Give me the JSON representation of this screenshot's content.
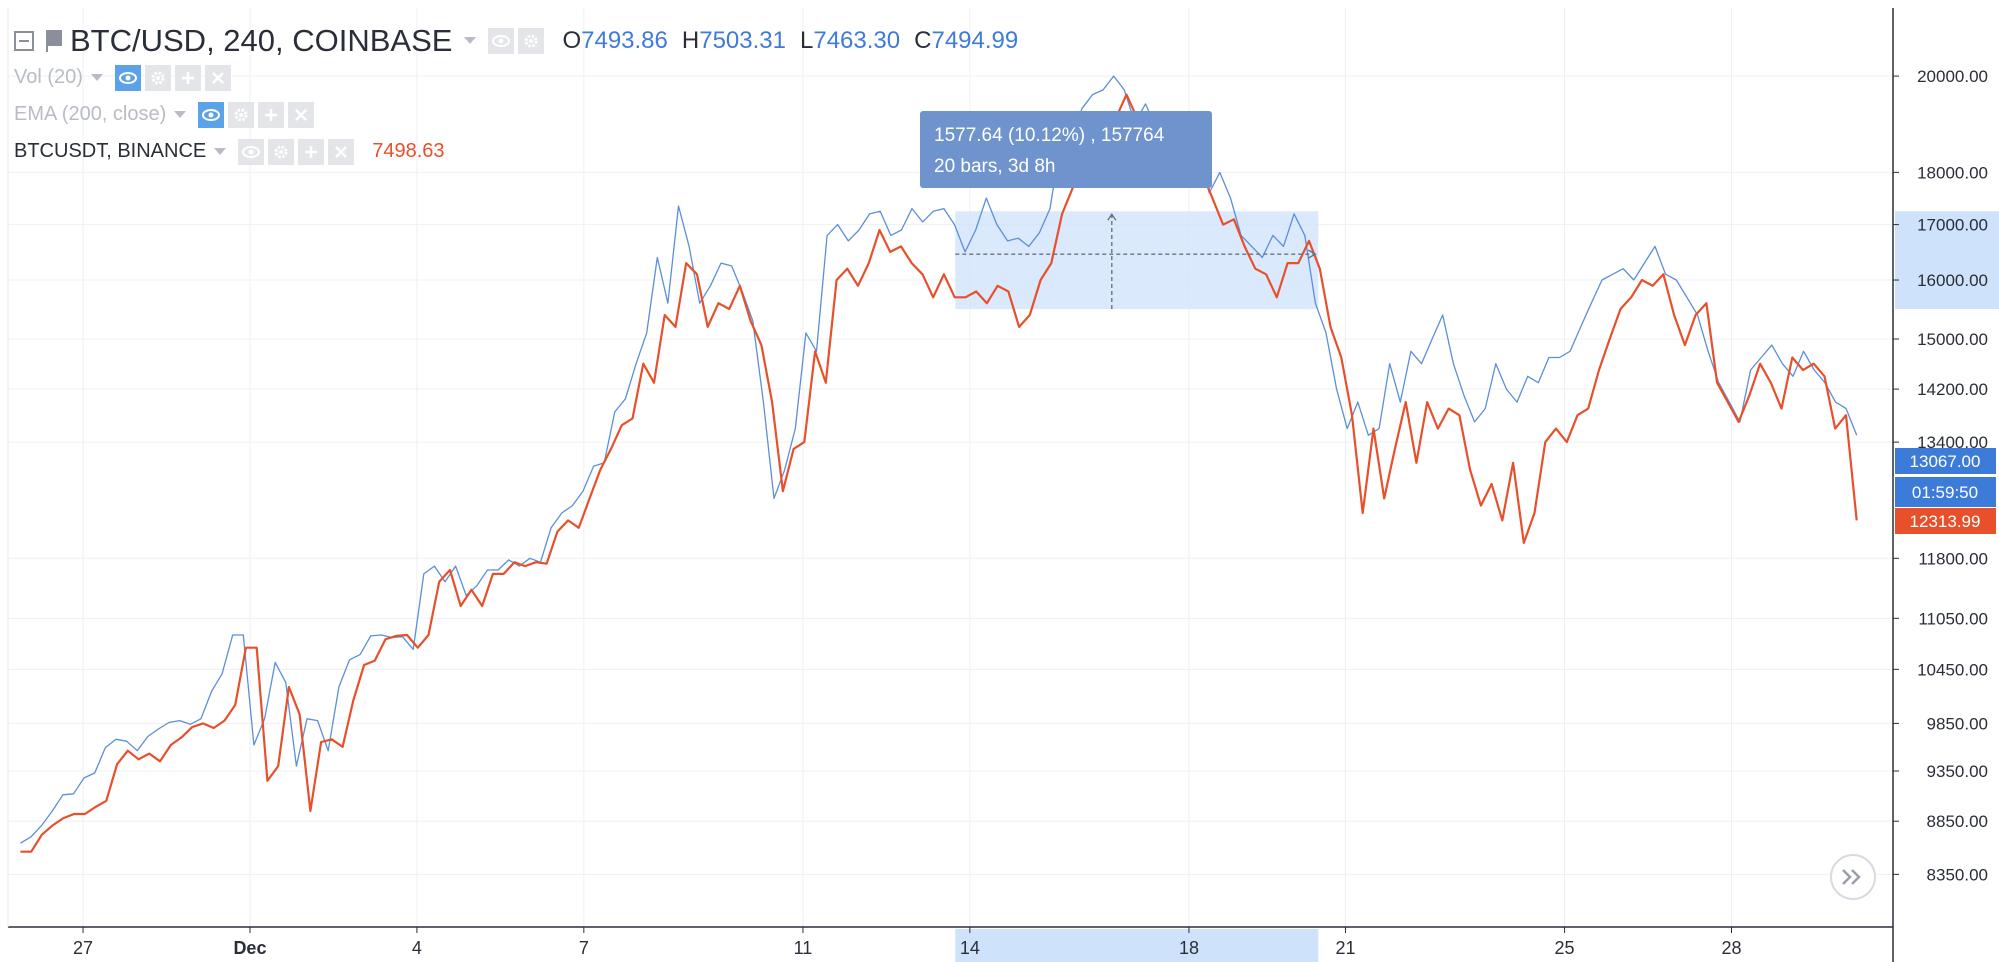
{
  "legend": {
    "symbol": "BTC/USD, 240, COINBASE",
    "o_label": "O",
    "o": "7493.86",
    "h_label": "H",
    "h": "7503.31",
    "l_label": "L",
    "l": "7463.30",
    "c_label": "C",
    "c": "7494.99",
    "studies": [
      "Vol (20)",
      "EMA (200, close)"
    ],
    "compare": {
      "name": "BTCUSDT, BINANCE",
      "price": "7498.63"
    }
  },
  "tooltip": {
    "line1": "1577.64 (10.12%) , 157764",
    "line2": "20 bars, 3d 8h"
  },
  "price_badges": {
    "blue": "13067.00",
    "timer": "01:59:50",
    "red": "12313.99"
  },
  "colors": {
    "blue_series": "#5b8fd8",
    "red_series": "#e8502b",
    "blue_badge": "#3d7bd9",
    "red_badge": "#e8502b",
    "tooltip_bg": "#6f93cc",
    "selection": "#cfe2fb"
  },
  "icons": [
    "collapse-icon",
    "flag-icon",
    "eye-icon",
    "gear-icon",
    "plus-icon",
    "close-icon",
    "scroll-right-icon"
  ],
  "chart_data": {
    "type": "line",
    "y_ticks": [
      "20000.00",
      "18000.00",
      "17000.00",
      "16000.00",
      "15000.00",
      "14200.00",
      "13400.00",
      "11800.00",
      "11050.00",
      "10450.00",
      "9850.00",
      "9350.00",
      "8850.00",
      "8350.00"
    ],
    "x_ticks": [
      "27",
      "Dec",
      "4",
      "7",
      "11",
      "14",
      "18",
      "21",
      "25",
      "28"
    ],
    "x_tick_pos": [
      3,
      11,
      19,
      27,
      37.5,
      45.5,
      56,
      63.5,
      74,
      82
    ],
    "x_range": [
      -0.5,
      89.5
    ],
    "y_range": [
      7900,
      21500
    ],
    "grid": true,
    "series": [
      {
        "values": [
          8640,
          8700,
          8810,
          8950,
          9110,
          9120,
          9280,
          9330,
          9590,
          9680,
          9660,
          9560,
          9710,
          9790,
          9860,
          9880,
          9840,
          9900,
          10200,
          10400,
          10850,
          10850,
          9620,
          9900,
          10530,
          10300,
          9400,
          9900,
          9880,
          9560,
          10250,
          10560,
          10620,
          10840,
          10850,
          10820,
          10830,
          10680,
          11600,
          11700,
          11500,
          11700,
          11330,
          11450,
          11650,
          11650,
          11780,
          11700,
          11800,
          11750,
          12200,
          12400,
          12500,
          12700,
          13050,
          13100,
          13850,
          14050,
          14600,
          15100,
          16400,
          15600,
          17350,
          16600,
          15600,
          15900,
          16300,
          16250,
          15800,
          15300,
          14000,
          12600,
          13000,
          13600,
          15100,
          14800,
          16800,
          17000,
          16700,
          16900,
          17200,
          17250,
          16800,
          16900,
          17300,
          17050,
          17250,
          17300,
          17000,
          16500,
          16900,
          17500,
          17000,
          16700,
          16750,
          16600,
          16850,
          17300,
          18600,
          18700,
          19300,
          19600,
          19700,
          20000,
          19700,
          19000,
          19400,
          18900,
          19200,
          19150,
          18700,
          18500,
          17600,
          18000,
          17500,
          16800,
          16600,
          16400,
          16800,
          16600,
          17200,
          16800,
          15600,
          15100,
          14200,
          13600,
          14000,
          13500,
          13600,
          14600,
          14000,
          14800,
          14600,
          15000,
          15400,
          14600,
          14100,
          13700,
          13900,
          14600,
          14200,
          14000,
          14400,
          14300,
          14700,
          14700,
          14800,
          15200,
          15600,
          16000,
          16100,
          16200,
          16000,
          16300,
          16600,
          16100,
          16000,
          15700,
          15400,
          14800,
          14300,
          14000,
          13700,
          14500,
          14700,
          14900,
          14600,
          14400,
          14800,
          14500,
          14300,
          14000,
          13900,
          13500
        ]
      },
      {
        "values": [
          8560,
          8560,
          8720,
          8810,
          8880,
          8920,
          8920,
          8990,
          9050,
          9420,
          9560,
          9470,
          9530,
          9450,
          9620,
          9700,
          9810,
          9850,
          9800,
          9880,
          10050,
          10700,
          10700,
          9250,
          9400,
          10250,
          9950,
          8950,
          9650,
          9680,
          9600,
          10100,
          10500,
          10550,
          10800,
          10840,
          10850,
          10700,
          10850,
          11500,
          11650,
          11200,
          11400,
          11200,
          11600,
          11600,
          11750,
          11700,
          11750,
          11730,
          12150,
          12300,
          12200,
          12600,
          13000,
          13300,
          13650,
          13750,
          14600,
          14300,
          15400,
          15200,
          16300,
          16100,
          15200,
          15600,
          15500,
          15900,
          15300,
          14900,
          14000,
          12700,
          13300,
          13400,
          14800,
          14300,
          16000,
          16200,
          15900,
          16300,
          16900,
          16500,
          16600,
          16300,
          16100,
          15700,
          16100,
          15700,
          15700,
          15800,
          15600,
          15900,
          15800,
          15200,
          15400,
          16000,
          16300,
          17200,
          17700,
          17950,
          18400,
          18900,
          19100,
          19600,
          19100,
          18600,
          18500,
          18400,
          18800,
          18500,
          18000,
          17500,
          17000,
          17100,
          16600,
          16200,
          16100,
          15700,
          16300,
          16300,
          16700,
          16200,
          15200,
          14700,
          13800,
          12400,
          13600,
          12600,
          13300,
          14000,
          13100,
          14000,
          13600,
          13900,
          13800,
          13000,
          12500,
          12800,
          12300,
          13100,
          12000,
          12400,
          13400,
          13600,
          13400,
          13800,
          13900,
          14500,
          15000,
          15500,
          15700,
          16000,
          15900,
          16100,
          15400,
          14900,
          15400,
          15600,
          14300,
          14000,
          13700,
          14100,
          14600,
          14300,
          13900,
          14700,
          14500,
          14600,
          14400,
          13600,
          13800,
          12300
        ]
      }
    ]
  }
}
